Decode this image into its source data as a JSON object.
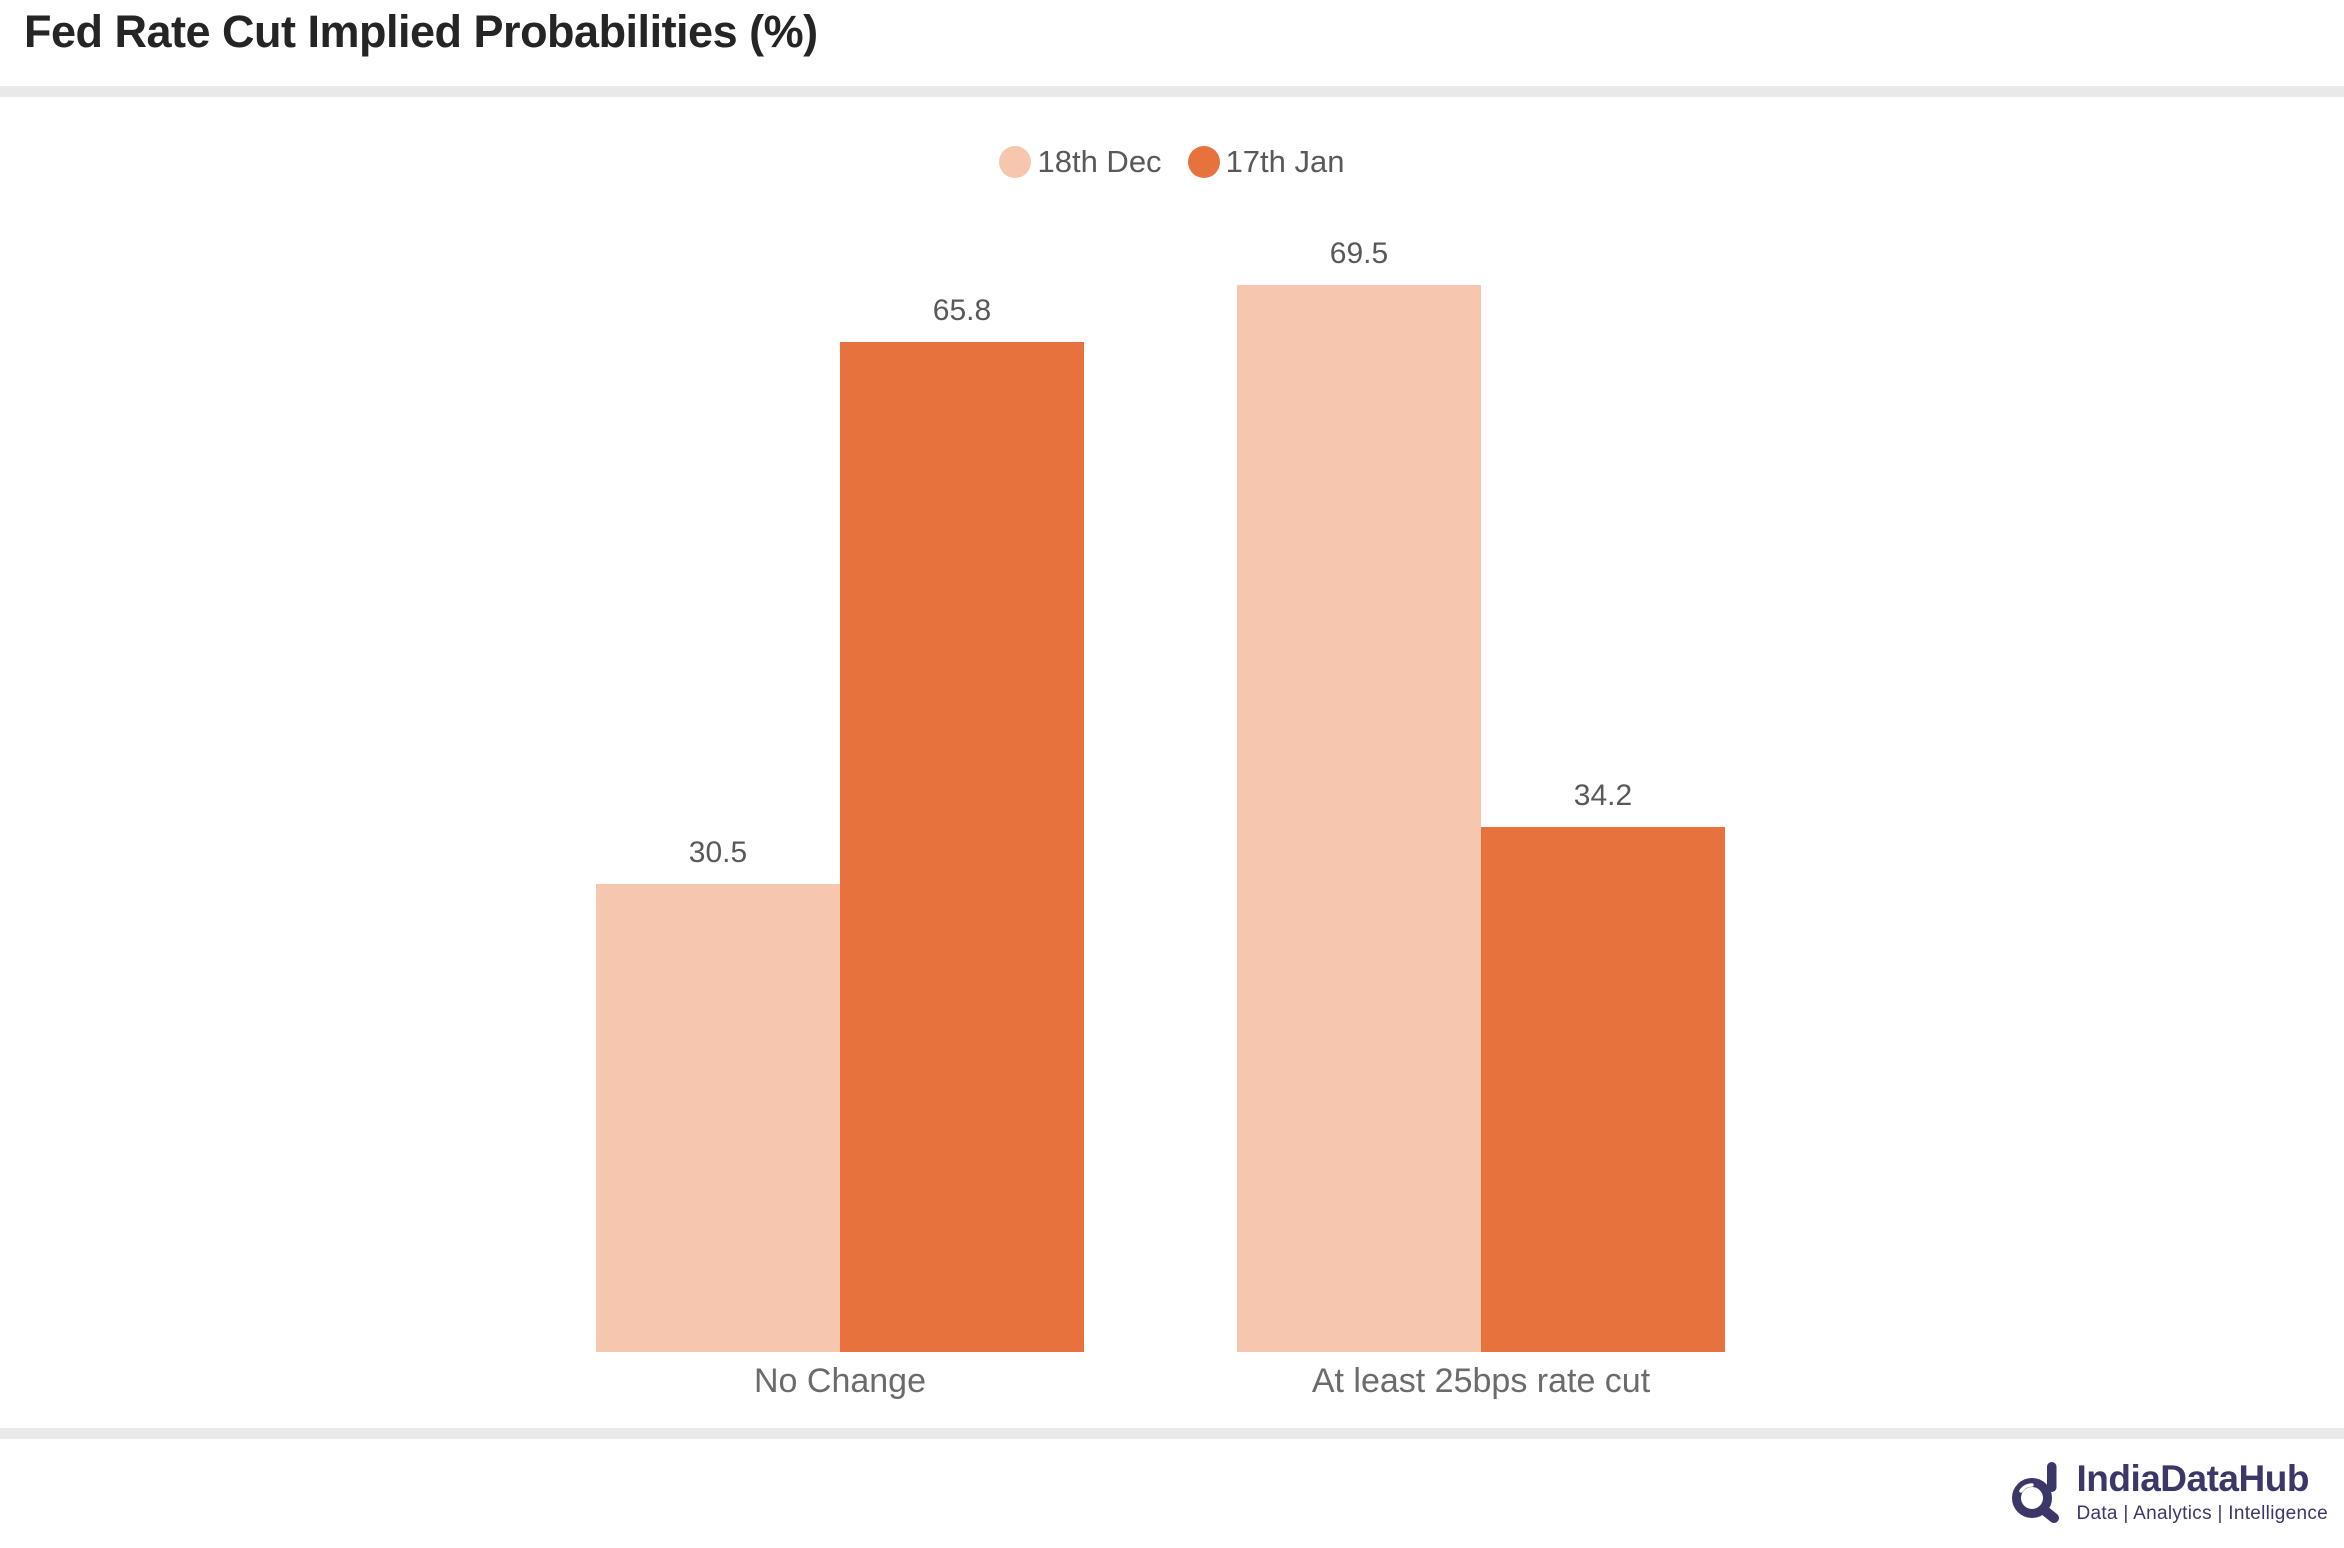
{
  "title": "Fed Rate Cut Implied Probabilities (%)",
  "colors": {
    "series_18th_dec": "#f6c7ae",
    "series_17th_jan": "#e7723e",
    "text_gray": "#595959",
    "title_dark": "#252525",
    "divider_gray": "#e9e9e9",
    "logo_navy": "#3b3768"
  },
  "chart_data": {
    "type": "bar",
    "categories": [
      "No Change",
      "At least 25bps rate cut"
    ],
    "series": [
      {
        "name": "18th Dec",
        "color": "#f6c7ae",
        "values": [
          30.5,
          69.5
        ]
      },
      {
        "name": "17th Jan",
        "color": "#e7723e",
        "values": [
          65.8,
          34.2
        ]
      }
    ],
    "title": "Fed Rate Cut Implied Probabilities (%)",
    "xlabel": "",
    "ylabel": "",
    "ylim": [
      0,
      75
    ],
    "grid": false,
    "axes_visible": false,
    "legend_position": "top-center",
    "data_labels": true
  },
  "footer": {
    "logo_text": "IndiaDataHub",
    "tagline": "Data | Analytics | Intelligence"
  }
}
